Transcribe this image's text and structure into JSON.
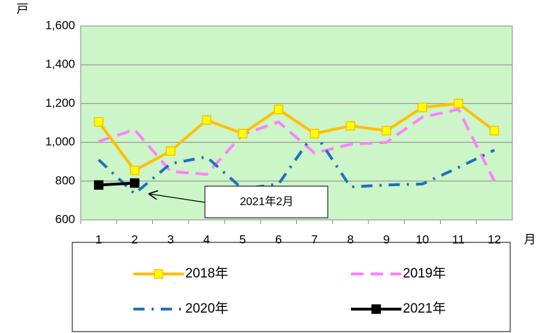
{
  "chart_data": {
    "type": "line",
    "y_label": "戸",
    "x_label": "月",
    "categories": [
      "1",
      "2",
      "3",
      "4",
      "5",
      "6",
      "7",
      "8",
      "9",
      "10",
      "11",
      "12"
    ],
    "series": [
      {
        "name": "2018年",
        "color": "#ffc000",
        "marker_color": "#ffff00",
        "style": "solid",
        "marker": "square",
        "values": [
          1105,
          855,
          955,
          1115,
          1045,
          1170,
          1045,
          1085,
          1060,
          1180,
          1200,
          1060
        ]
      },
      {
        "name": "2019年",
        "color": "#ff80ff",
        "style": "dash",
        "values": [
          1005,
          1065,
          850,
          835,
          1040,
          1105,
          945,
          990,
          1000,
          1130,
          1170,
          800
        ]
      },
      {
        "name": "2020年",
        "color": "#1f72b8",
        "style": "dashdot",
        "values": [
          910,
          735,
          890,
          925,
          760,
          785,
          1050,
          770,
          780,
          785,
          870,
          960
        ]
      },
      {
        "name": "2021年",
        "color": "#000000",
        "marker_color": "#000000",
        "style": "solid",
        "marker": "square",
        "values": [
          780,
          790,
          null,
          null,
          null,
          null,
          null,
          null,
          null,
          null,
          null,
          null
        ]
      }
    ],
    "annotation": "2021年2月",
    "ylim": [
      600,
      1600
    ],
    "yticks": [
      600,
      800,
      {
        "value": 1000,
        "label": "1,000"
      },
      {
        "value": 1200,
        "label": "1,200"
      },
      {
        "value": 1400,
        "label": "1,400"
      },
      {
        "value": 1600,
        "label": "1,600"
      }
    ],
    "grid": true,
    "plot_background": "#ccf5c8"
  }
}
